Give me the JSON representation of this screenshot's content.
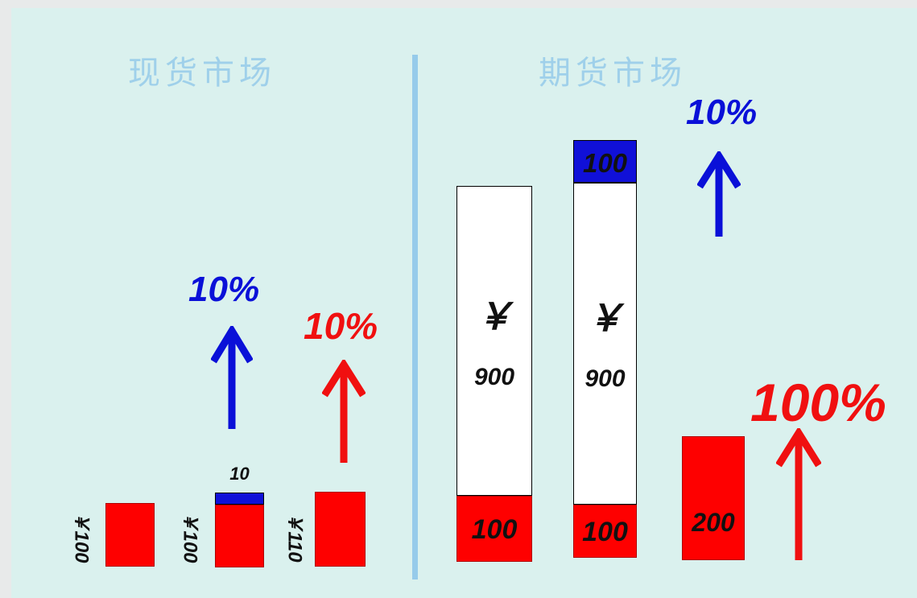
{
  "spot": {
    "heading": "现货市场",
    "bar1_label": "￥100",
    "bar2_label": "￥100",
    "bar2_top": "10",
    "bar3_label": "￥110",
    "blue_pct": "10%",
    "red_pct": "10%"
  },
  "futures": {
    "heading": "期货市场",
    "bar1_yen": "￥",
    "bar1_value": "900",
    "bar1_base": "100",
    "bar2_top": "100",
    "bar2_yen": "￥",
    "bar2_value": "900",
    "bar2_base": "100",
    "bar3_value": "200",
    "blue_pct": "10%",
    "red_pct": "100%"
  },
  "colors": {
    "blue": "#0a10d8",
    "red": "#f01010",
    "heading": "#9fd0ea",
    "background": "#daf1ee"
  }
}
